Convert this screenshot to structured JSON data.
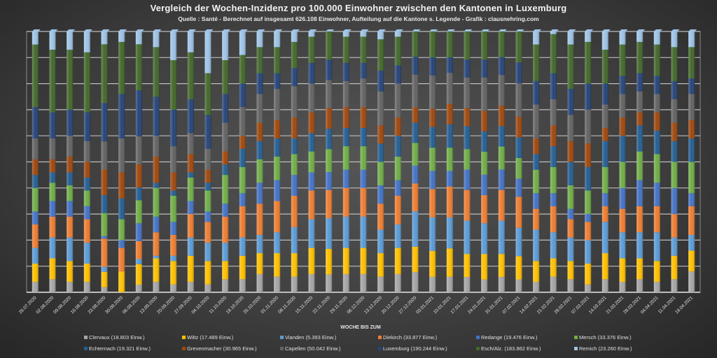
{
  "chart_data": {
    "type": "bar",
    "stacked": "percent",
    "title": "Vergleich der Wochen-Inzidenz pro 100.000 Einwohner zwischen den Kantonen in Luxemburg",
    "subtitle": "Quelle : Santé - Berechnet auf insgesamt 626.108 Einwohner, Aufteilung auf die Kantone s. Legende - Grafik : clausnehring.com",
    "xlabel": "WOCHE BIS ZUM",
    "ylabel": "",
    "ylim": [
      0,
      100
    ],
    "grid": true,
    "legend_position": "bottom",
    "categories": [
      "26.07.2020",
      "02.08.2020",
      "09.08.2020",
      "16.08.2020",
      "23.08.2020",
      "30.08.2020",
      "06.09.2020",
      "13.09.2020",
      "20.09.2020",
      "27.09.2020",
      "04.10.2020",
      "11.10.2020",
      "18.10.2020",
      "25.10.2020",
      "01.11.2020",
      "08.11.2020",
      "15.11.2020",
      "22.11.2020",
      "29.11.2020",
      "06.12.2020",
      "13.12.2020",
      "20.12.2020",
      "27.12.2020",
      "03.01.2021",
      "10.01.2021",
      "17.01.2021",
      "24.01.2021",
      "31.01.2021",
      "07.02.2021",
      "14.02.2021",
      "21.02.2021",
      "28.02.2021",
      "07.03.2021",
      "14.03.2021",
      "21.03.2021",
      "28.03.2021",
      "04.04.2021",
      "11.04.2021",
      "18.04.2021"
    ],
    "series": [
      {
        "name": "Clervaux (18.803 Einw.)",
        "color": "#a5a5a5",
        "values": [
          4,
          5,
          4,
          4,
          2,
          0,
          3,
          4,
          3,
          4,
          3,
          5,
          5,
          7,
          6,
          6,
          7,
          7,
          7,
          7,
          6,
          7,
          8,
          6,
          6,
          6,
          5,
          6,
          5,
          4,
          6,
          5,
          3,
          5,
          4,
          5,
          4,
          5,
          8
        ]
      },
      {
        "name": "Wiltz (17.489 Einw.)",
        "color": "#ffc000",
        "values": [
          7,
          8,
          8,
          7,
          6,
          8,
          8,
          9,
          9,
          10,
          9,
          7,
          9,
          8,
          9,
          9,
          10,
          10,
          10,
          10,
          9,
          10,
          10,
          10,
          11,
          9,
          10,
          9,
          9,
          8,
          7,
          7,
          8,
          10,
          9,
          8,
          8,
          9,
          8
        ]
      },
      {
        "name": "Vianden (5.393 Einw.)",
        "color": "#5b9bd5",
        "values": [
          6,
          8,
          9,
          8,
          2,
          0,
          2,
          1,
          2,
          7,
          7,
          7,
          7,
          7,
          8,
          10,
          11,
          12,
          12,
          12,
          9,
          9,
          14,
          13,
          12,
          13,
          12,
          13,
          11,
          12,
          10,
          9,
          9,
          12,
          10,
          10,
          11,
          7,
          6
        ]
      },
      {
        "name": "Diekirch (33.877 Einw.)",
        "color": "#ed7d31",
        "values": [
          9,
          8,
          8,
          9,
          11,
          9,
          7,
          9,
          8,
          9,
          8,
          10,
          12,
          12,
          12,
          12,
          11,
          11,
          11,
          11,
          10,
          11,
          11,
          11,
          12,
          12,
          11,
          12,
          12,
          8,
          10,
          7,
          7,
          6,
          9,
          10,
          10,
          9,
          11
        ]
      },
      {
        "name": "Redange (19.476 Einw.)",
        "color": "#4472c4",
        "values": [
          5,
          6,
          6,
          5,
          1,
          3,
          7,
          6,
          5,
          5,
          4,
          5,
          5,
          8,
          8,
          8,
          7,
          7,
          7,
          7,
          7,
          6,
          7,
          7,
          6,
          8,
          8,
          8,
          7,
          6,
          5,
          4,
          3,
          5,
          8,
          10,
          9,
          10,
          5
        ]
      },
      {
        "name": "Mersch (33.376 Einw.)",
        "color": "#70ad47",
        "values": [
          9,
          7,
          6,
          6,
          9,
          8,
          9,
          11,
          10,
          9,
          8,
          11,
          10,
          9,
          9,
          8,
          8,
          9,
          9,
          9,
          9,
          9,
          9,
          9,
          9,
          8,
          9,
          9,
          8,
          9,
          10,
          9,
          9,
          10,
          10,
          11,
          11,
          10,
          12
        ]
      },
      {
        "name": "Echternach (19.321 Einw.)",
        "color": "#255e91",
        "values": [
          5,
          4,
          5,
          5,
          7,
          8,
          5,
          2,
          2,
          2,
          3,
          4,
          7,
          7,
          7,
          6,
          7,
          8,
          7,
          7,
          7,
          8,
          8,
          8,
          9,
          9,
          8,
          8,
          8,
          6,
          8,
          9,
          9,
          10,
          10,
          10,
          9,
          8,
          9
        ]
      },
      {
        "name": "Grevenmacher (30.965 Einw.)",
        "color": "#9e480e",
        "values": [
          6,
          5,
          6,
          6,
          10,
          10,
          9,
          10,
          7,
          7,
          5,
          5,
          5,
          7,
          7,
          8,
          8,
          8,
          8,
          8,
          7,
          7,
          6,
          7,
          8,
          7,
          8,
          8,
          8,
          6,
          8,
          8,
          9,
          5,
          7,
          5,
          7,
          7,
          7
        ]
      },
      {
        "name": "Capellen (50.042 Einw.)",
        "color": "#636363",
        "values": [
          8,
          8,
          8,
          8,
          11,
          13,
          11,
          8,
          10,
          8,
          8,
          11,
          11,
          11,
          12,
          12,
          11,
          11,
          10,
          11,
          13,
          13,
          13,
          13,
          12,
          12,
          13,
          12,
          13,
          13,
          10,
          10,
          13,
          9,
          9,
          8,
          7,
          9,
          10
        ]
      },
      {
        "name": "Luxemburg (190.244 Einw.)",
        "color": "#264478",
        "values": [
          12,
          10,
          10,
          11,
          15,
          17,
          18,
          15,
          14,
          13,
          13,
          11,
          9,
          8,
          6,
          7,
          8,
          8,
          7,
          6,
          8,
          7,
          7,
          7,
          6,
          7,
          7,
          7,
          8,
          9,
          10,
          10,
          10,
          8,
          7,
          7,
          7,
          7,
          6
        ]
      },
      {
        "name": "Esch/Alz. (183.862 Einw.)",
        "color": "#43682b",
        "values": [
          24,
          24,
          23,
          23,
          23,
          20,
          18,
          19,
          19,
          18,
          16,
          13,
          11,
          10,
          10,
          10,
          10,
          11,
          10,
          10,
          12,
          11,
          10,
          10,
          10,
          11,
          11,
          10,
          12,
          14,
          15,
          17,
          16,
          13,
          12,
          12,
          12,
          13,
          12
        ]
      },
      {
        "name": "Remich (23.260 Einw.)",
        "color": "#9dc3e6",
        "values": [
          5,
          7,
          7,
          8,
          5,
          4,
          5,
          6,
          11,
          8,
          16,
          11,
          9,
          6,
          6,
          4,
          2,
          0,
          2,
          2,
          3,
          2,
          -4,
          -1,
          -1,
          -2,
          -2,
          -2,
          -1,
          5,
          1,
          5,
          4,
          7,
          5,
          4,
          5,
          6,
          6
        ]
      }
    ]
  },
  "legend_layout_columns": 6
}
